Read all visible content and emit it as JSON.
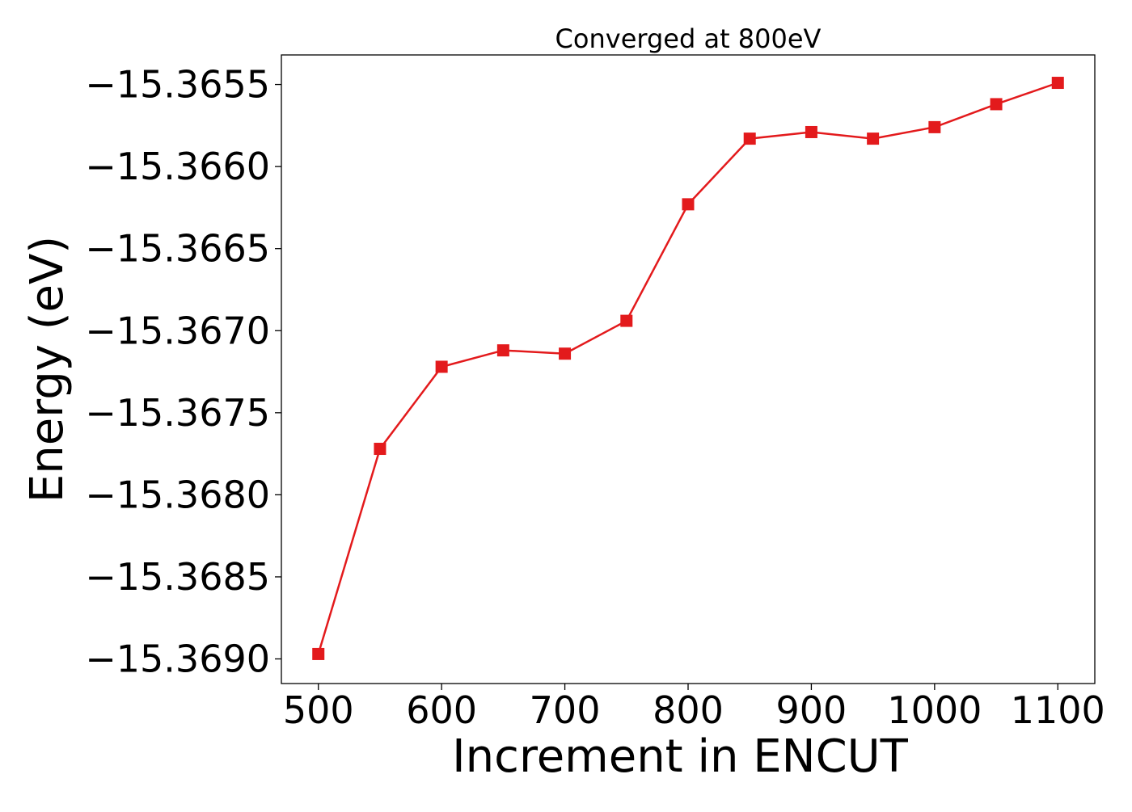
{
  "chart_data": {
    "type": "line",
    "title": "Converged at 800eV",
    "xlabel": "Increment in ENCUT",
    "ylabel": "Energy (eV)",
    "xlim": [
      470,
      1130
    ],
    "ylim": [
      -15.36915,
      -15.36532
    ],
    "xticks": [
      500,
      600,
      700,
      800,
      900,
      1000,
      1100
    ],
    "xtick_labels": [
      "500",
      "600",
      "700",
      "800",
      "900",
      "1000",
      "1100"
    ],
    "yticks": [
      -15.3655,
      -15.366,
      -15.3665,
      -15.367,
      -15.3675,
      -15.368,
      -15.3685,
      -15.369
    ],
    "ytick_labels": [
      "−15.3655",
      "−15.3660",
      "−15.3665",
      "−15.3670",
      "−15.3675",
      "−15.3680",
      "−15.3685",
      "−15.3690"
    ],
    "grid": false,
    "series": [
      {
        "marker": "square",
        "color": "#e31a1c",
        "x": [
          500,
          550,
          600,
          650,
          700,
          750,
          800,
          850,
          900,
          950,
          1000,
          1050,
          1100
        ],
        "y": [
          -15.36897,
          -15.36772,
          -15.36722,
          -15.36712,
          -15.36714,
          -15.36694,
          -15.36623,
          -15.36583,
          -15.36579,
          -15.36583,
          -15.36576,
          -15.36562,
          -15.36549
        ]
      }
    ]
  }
}
